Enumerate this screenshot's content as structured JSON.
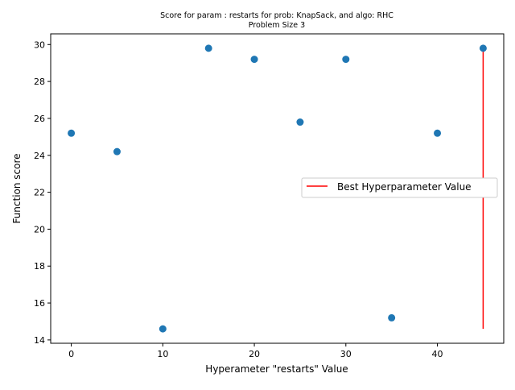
{
  "chart_data": {
    "type": "scatter",
    "title_line1": "Score for param : restarts for prob: KnapSack, and algo: RHC",
    "title_line2": "Problem Size 3",
    "xlabel": "Hyperameter \"restarts\" Value",
    "ylabel": "Function score",
    "xlim": [
      -2.25,
      47.25
    ],
    "ylim": [
      13.82,
      30.58
    ],
    "xticks": [
      0,
      10,
      20,
      30,
      40
    ],
    "yticks": [
      14,
      16,
      18,
      20,
      22,
      24,
      26,
      28,
      30
    ],
    "series": [
      {
        "x": [
          0,
          5,
          10,
          15,
          20,
          25,
          30,
          35,
          40,
          45
        ],
        "y": [
          25.2,
          24.2,
          14.6,
          29.8,
          29.2,
          25.8,
          29.2,
          15.2,
          25.2,
          29.8
        ],
        "color": "#1f77b4"
      }
    ],
    "best_line": {
      "name": "Best Hyperparameter Value",
      "x": 45,
      "y_range": [
        14.6,
        29.8
      ],
      "color": "#ff0000"
    },
    "legend_position": "center-right",
    "grid": false
  }
}
